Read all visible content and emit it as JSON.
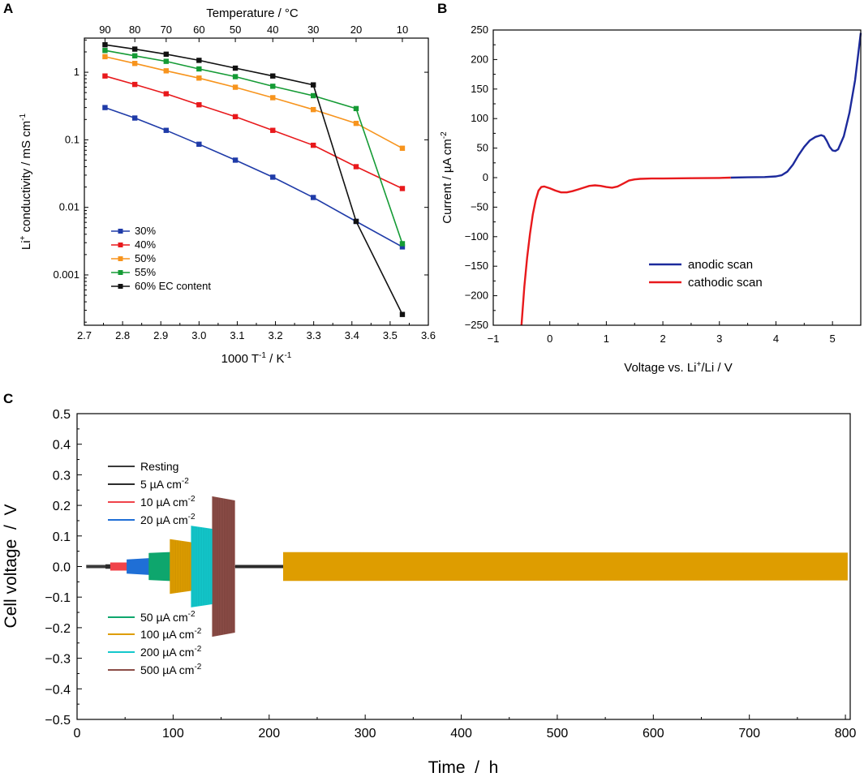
{
  "chart_data": [
    {
      "panel": "A",
      "type": "line",
      "xlabel": "1000 T-1 / K-1",
      "xlabel_parts": {
        "base": "1000 T",
        "sup1": "-1",
        "mid": " / K",
        "sup2": "-1"
      },
      "ylabel": "Li+ conductivity / mS cm-1",
      "ylabel_parts": {
        "li": "Li",
        "plus": "+",
        "mid": " conductivity / mS cm",
        "sup": "-1"
      },
      "top_xlabel": "Temperature / °C",
      "xlim": [
        2.7,
        3.6
      ],
      "ylim_log": [
        0.00018,
        3.2
      ],
      "x_ticks": [
        2.7,
        2.8,
        2.9,
        3.0,
        3.1,
        3.2,
        3.3,
        3.4,
        3.5,
        3.6
      ],
      "x_tick_labels": [
        "2.7",
        "2.8",
        "2.9",
        "3.0",
        "3.1",
        "3.2",
        "3.3",
        "3.4",
        "3.5",
        "3.6"
      ],
      "y_ticks": [
        0.001,
        0.01,
        0.1,
        1
      ],
      "y_tick_labels": [
        "0.001",
        "0.01",
        "0.1",
        "1"
      ],
      "top_ticks_x": [
        2.754,
        2.832,
        2.914,
        3.0,
        3.095,
        3.193,
        3.299,
        3.411,
        3.532
      ],
      "top_tick_labels": [
        "90",
        "80",
        "70",
        "60",
        "50",
        "40",
        "30",
        "20",
        "10"
      ],
      "x": [
        2.754,
        2.832,
        2.914,
        3.0,
        3.095,
        3.193,
        3.299,
        3.411,
        3.532
      ],
      "series": [
        {
          "name": "30%",
          "color": "#1f3ba8",
          "values": [
            0.3,
            0.21,
            0.138,
            0.086,
            0.05,
            0.028,
            0.014,
            0.0062,
            0.0026
          ]
        },
        {
          "name": "40%",
          "color": "#e8191c",
          "values": [
            0.88,
            0.66,
            0.48,
            0.33,
            0.22,
            0.138,
            0.083,
            0.04,
            0.019
          ]
        },
        {
          "name": "50%",
          "color": "#f7941d",
          "values": [
            1.7,
            1.35,
            1.05,
            0.82,
            0.6,
            0.42,
            0.28,
            0.175,
            0.075
          ]
        },
        {
          "name": "55%",
          "color": "#159b35",
          "values": [
            2.1,
            1.75,
            1.45,
            1.12,
            0.86,
            0.62,
            0.45,
            0.29,
            0.0029
          ]
        },
        {
          "name": "60% EC content",
          "color": "#111111",
          "values": [
            2.55,
            2.2,
            1.85,
            1.5,
            1.15,
            0.88,
            0.65,
            0.0062,
            0.00026
          ]
        }
      ]
    },
    {
      "panel": "B",
      "type": "line",
      "xlabel": "Voltage vs. Li+/Li / V",
      "xlabel_parts": {
        "a": "Voltage vs. Li",
        "sup": "+",
        "b": "/Li / V"
      },
      "ylabel": "Current / µA cm-2",
      "ylabel_parts": {
        "base": "Current / µA cm",
        "sup": "-2"
      },
      "xlim": [
        -1,
        5.5
      ],
      "ylim": [
        -250,
        250
      ],
      "x_ticks": [
        -1,
        0,
        1,
        2,
        3,
        4,
        5
      ],
      "y_ticks": [
        -250,
        -200,
        -150,
        -100,
        -50,
        0,
        50,
        100,
        150,
        200,
        250
      ],
      "series": [
        {
          "name": "anodic scan",
          "color": "#1c2a9c",
          "x": [
            3.2,
            3.5,
            3.8,
            4.0,
            4.1,
            4.2,
            4.3,
            4.4,
            4.5,
            4.6,
            4.7,
            4.8,
            4.85,
            4.9,
            4.95,
            5.0,
            5.05,
            5.1,
            5.2,
            5.3,
            5.4,
            5.45,
            5.5
          ],
          "y": [
            0,
            0.5,
            1,
            2,
            4,
            10,
            22,
            38,
            52,
            63,
            69,
            72,
            70,
            62,
            52,
            46,
            45,
            48,
            70,
            110,
            165,
            205,
            245
          ]
        },
        {
          "name": "cathodic scan",
          "color": "#e8191c",
          "x": [
            -0.5,
            -0.45,
            -0.4,
            -0.35,
            -0.3,
            -0.25,
            -0.2,
            -0.15,
            -0.1,
            0.0,
            0.1,
            0.2,
            0.3,
            0.4,
            0.5,
            0.6,
            0.7,
            0.8,
            0.9,
            1.0,
            1.1,
            1.2,
            1.3,
            1.4,
            1.5,
            1.6,
            1.8,
            2.0,
            2.5,
            3.0,
            3.2
          ],
          "y": [
            -250,
            -185,
            -135,
            -95,
            -62,
            -38,
            -22,
            -16,
            -15,
            -18,
            -22,
            -25,
            -25,
            -23,
            -20,
            -17,
            -14,
            -13,
            -14,
            -16,
            -17,
            -15,
            -10,
            -5,
            -3,
            -2,
            -1.5,
            -1.5,
            -1,
            -0.5,
            0
          ]
        }
      ]
    },
    {
      "panel": "C",
      "type": "line",
      "xlabel": "Time  /  h",
      "ylabel": "Cell voltage  /  V",
      "xlim": [
        0,
        805
      ],
      "ylim": [
        -0.5,
        0.5
      ],
      "x_ticks": [
        0,
        100,
        200,
        300,
        400,
        500,
        600,
        700,
        800
      ],
      "y_ticks": [
        -0.5,
        -0.4,
        -0.3,
        -0.2,
        -0.1,
        0.0,
        0.1,
        0.2,
        0.3,
        0.4,
        0.5
      ],
      "y_tick_labels": [
        "-0.5",
        "-0.4",
        "-0.3",
        "-0.2",
        "-0.1",
        "0.0",
        "0.1",
        "0.2",
        "0.3",
        "0.4",
        "0.5"
      ],
      "series": [
        {
          "name": "Resting",
          "legend_base": "Resting",
          "legend_sup": "",
          "color": "#3a3a3a",
          "segments": [
            [
              10,
              30,
              0.004,
              0.004
            ]
          ]
        },
        {
          "name": "5 µA cm-2",
          "legend_base": "5 µA cm",
          "legend_sup": "-2",
          "color": "#2b2b2b",
          "segments": [
            [
              30,
              35,
              0.006,
              0.006
            ],
            [
              165,
              215,
              0.004,
              0.004
            ]
          ]
        },
        {
          "name": "10 µA cm-2",
          "legend_base": "10 µA cm",
          "legend_sup": "-2",
          "color": "#f0434a",
          "segments": [
            [
              35,
              52,
              0.012,
              0.012
            ]
          ]
        },
        {
          "name": "20 µA cm-2",
          "legend_base": "20 µA cm",
          "legend_sup": "-2",
          "color": "#1f6fd6",
          "segments": [
            [
              52,
              75,
              0.022,
              0.026
            ]
          ]
        },
        {
          "name": "50 µA cm-2",
          "legend_base": "50 µA cm",
          "legend_sup": "-2",
          "color": "#0ea66d",
          "segments": [
            [
              75,
              97,
              0.043,
              0.046
            ]
          ]
        },
        {
          "name": "100 µA cm-2",
          "legend_base": "100 µA cm",
          "legend_sup": "-2",
          "color": "#de9d00",
          "segments": [
            [
              97,
              119,
              0.088,
              0.078
            ],
            [
              215,
              802,
              0.046,
              0.044
            ]
          ]
        },
        {
          "name": "200 µA cm-2",
          "legend_base": "200 µA cm",
          "legend_sup": "-2",
          "color": "#14c8cc",
          "segments": [
            [
              119,
              141,
              0.132,
              0.122
            ]
          ]
        },
        {
          "name": "500 µA cm-2",
          "legend_base": "500 µA cm",
          "legend_sup": "-2",
          "color": "#8b4d47",
          "segments": [
            [
              141,
              164,
              0.228,
              0.215
            ]
          ]
        }
      ]
    }
  ],
  "panels": {
    "a": "A",
    "b": "B",
    "c": "C"
  }
}
